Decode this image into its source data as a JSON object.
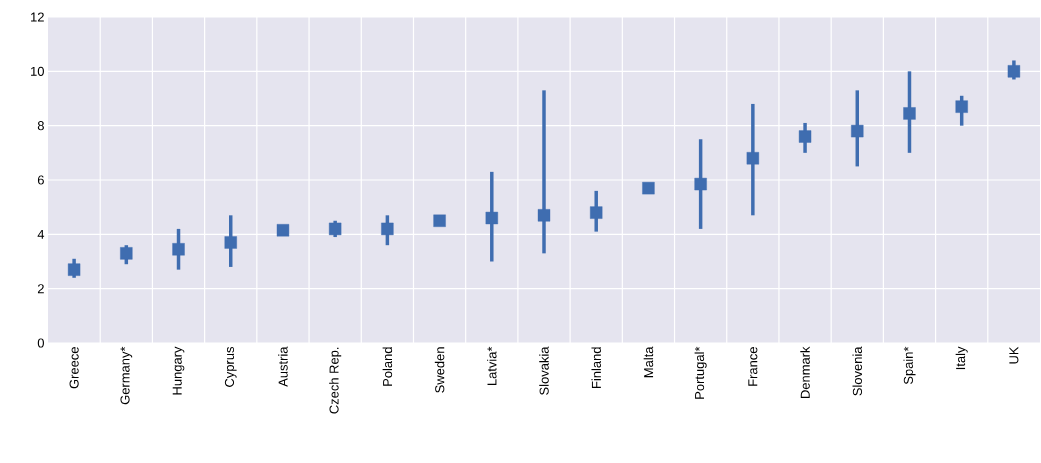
{
  "chart_data": {
    "type": "scatter",
    "categories": [
      "Greece",
      "Germany*",
      "Hungary",
      "Cyprus",
      "Austria",
      "Czech Rep.",
      "Poland",
      "Sweden",
      "Latvia*",
      "Slovakia",
      "Finland",
      "Malta",
      "Portugal*",
      "France",
      "Denmark",
      "Slovenia",
      "Spain*",
      "Italy",
      "UK"
    ],
    "values": [
      2.7,
      3.3,
      3.45,
      3.7,
      4.15,
      4.2,
      4.2,
      4.5,
      4.6,
      4.7,
      4.8,
      5.7,
      5.85,
      6.8,
      7.6,
      7.8,
      8.45,
      8.7,
      10.0
    ],
    "errors": [
      [
        2.4,
        3.1
      ],
      [
        2.9,
        3.6
      ],
      [
        2.7,
        4.2
      ],
      [
        2.8,
        4.7
      ],
      null,
      [
        3.9,
        4.5
      ],
      [
        3.6,
        4.7
      ],
      null,
      [
        3.0,
        6.3
      ],
      [
        3.3,
        9.3
      ],
      [
        4.1,
        5.6
      ],
      null,
      [
        4.2,
        7.5
      ],
      [
        4.7,
        8.8
      ],
      [
        7.0,
        8.1
      ],
      [
        6.5,
        9.3
      ],
      [
        7.0,
        10.0
      ],
      [
        8.0,
        9.1
      ],
      [
        9.7,
        10.4
      ]
    ],
    "color": "#3f6db0",
    "marker": "square",
    "grid": true,
    "ylim": [
      0,
      12
    ],
    "yticks": [
      0,
      2,
      4,
      6,
      8,
      10,
      12
    ]
  }
}
